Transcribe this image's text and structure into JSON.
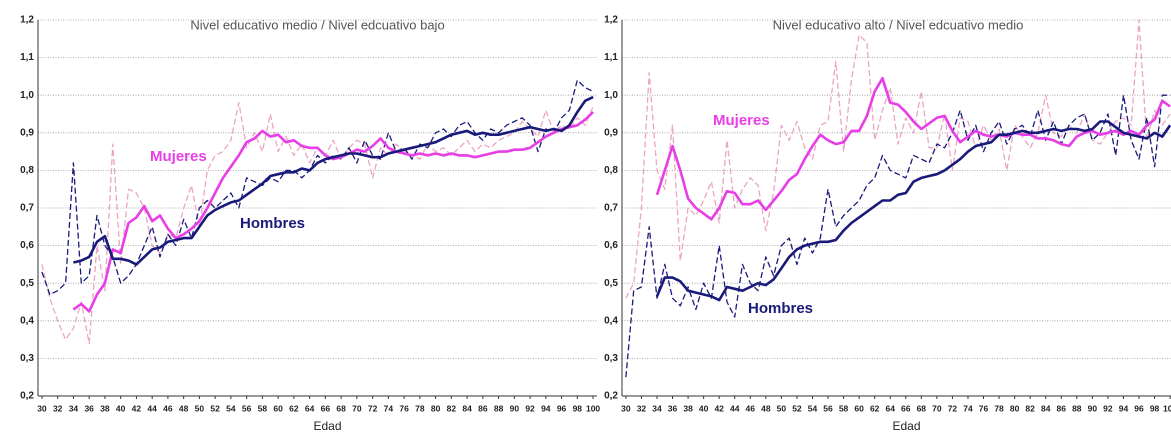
{
  "chart_data": [
    {
      "type": "line",
      "title": "Nivel educativo medio /  Nivel edcuativo bajo",
      "x_label": "Edad",
      "x": [
        30,
        31,
        32,
        33,
        34,
        35,
        36,
        37,
        38,
        39,
        40,
        41,
        42,
        43,
        44,
        45,
        46,
        47,
        48,
        49,
        50,
        51,
        52,
        53,
        54,
        55,
        56,
        57,
        58,
        59,
        60,
        61,
        62,
        63,
        64,
        65,
        66,
        67,
        68,
        69,
        70,
        71,
        72,
        73,
        74,
        75,
        76,
        77,
        78,
        79,
        80,
        81,
        82,
        83,
        84,
        85,
        86,
        87,
        88,
        89,
        90,
        91,
        92,
        93,
        94,
        95,
        96,
        97,
        98,
        99,
        100
      ],
      "xlim": [
        29.5,
        100.5
      ],
      "xticks": [
        30,
        32,
        34,
        36,
        38,
        40,
        42,
        44,
        46,
        48,
        50,
        52,
        54,
        56,
        58,
        60,
        62,
        64,
        66,
        68,
        70,
        72,
        74,
        76,
        78,
        80,
        82,
        84,
        86,
        88,
        90,
        92,
        94,
        96,
        98,
        100
      ],
      "ylim": [
        0.2,
        1.2
      ],
      "yticks": [
        {
          "value": 0.2,
          "label": "0,2"
        },
        {
          "value": 0.3,
          "label": "0,3"
        },
        {
          "value": 0.4,
          "label": "0,4"
        },
        {
          "value": 0.5,
          "label": "0,5"
        },
        {
          "value": 0.6,
          "label": "0,6"
        },
        {
          "value": 0.7,
          "label": "0,7"
        },
        {
          "value": 0.8,
          "label": "0,8"
        },
        {
          "value": 0.9,
          "label": "0,9"
        },
        {
          "value": 1.0,
          "label": "1,0"
        },
        {
          "value": 1.1,
          "label": "1,1"
        },
        {
          "value": 1.2,
          "label": "1,2"
        }
      ],
      "grid": true,
      "annotations": [
        {
          "text": "Mujeres",
          "color": "#e83ee8"
        },
        {
          "text": "Hombres",
          "color": "#1a1a7a"
        }
      ],
      "series": [
        {
          "color": "#eaa6c0",
          "dash": true,
          "values": [
            0.55,
            0.46,
            0.4,
            0.35,
            0.38,
            0.45,
            0.34,
            0.6,
            0.48,
            0.87,
            0.55,
            0.75,
            0.74,
            0.7,
            0.6,
            0.58,
            0.63,
            0.62,
            0.7,
            0.76,
            0.65,
            0.8,
            0.84,
            0.85,
            0.88,
            0.98,
            0.86,
            0.9,
            0.85,
            0.95,
            0.85,
            0.89,
            0.84,
            0.87,
            0.82,
            0.86,
            0.84,
            0.88,
            0.83,
            0.86,
            0.88,
            0.87,
            0.78,
            0.86,
            0.84,
            0.87,
            0.85,
            0.84,
            0.83,
            0.87,
            0.85,
            0.86,
            0.84,
            0.86,
            0.88,
            0.85,
            0.87,
            0.86,
            0.88,
            0.89,
            0.9,
            0.93,
            0.91,
            0.89,
            0.96,
            0.9,
            0.92,
            0.91,
            0.94,
            0.92,
            0.97
          ]
        },
        {
          "color": "#1a1a7a",
          "dash": true,
          "values": [
            0.53,
            0.47,
            0.48,
            0.5,
            0.82,
            0.5,
            0.52,
            0.68,
            0.6,
            0.57,
            0.5,
            0.52,
            0.55,
            0.6,
            0.65,
            0.57,
            0.63,
            0.6,
            0.67,
            0.62,
            0.7,
            0.72,
            0.7,
            0.72,
            0.74,
            0.7,
            0.78,
            0.77,
            0.76,
            0.78,
            0.77,
            0.8,
            0.8,
            0.78,
            0.8,
            0.84,
            0.82,
            0.84,
            0.83,
            0.86,
            0.82,
            0.88,
            0.84,
            0.83,
            0.9,
            0.85,
            0.86,
            0.83,
            0.87,
            0.86,
            0.9,
            0.91,
            0.89,
            0.92,
            0.93,
            0.9,
            0.88,
            0.91,
            0.9,
            0.92,
            0.93,
            0.94,
            0.92,
            0.85,
            0.91,
            0.9,
            0.94,
            0.96,
            1.04,
            1.02,
            1.01
          ]
        },
        {
          "color": "#e83ee8",
          "dash": false,
          "values": [
            null,
            null,
            null,
            null,
            0.43,
            0.445,
            0.425,
            0.47,
            0.5,
            0.59,
            0.58,
            0.66,
            0.675,
            0.705,
            0.665,
            0.68,
            0.645,
            0.62,
            0.63,
            0.645,
            0.665,
            0.7,
            0.74,
            0.78,
            0.81,
            0.84,
            0.875,
            0.885,
            0.905,
            0.89,
            0.895,
            0.875,
            0.88,
            0.865,
            0.86,
            0.86,
            0.84,
            0.83,
            0.835,
            0.845,
            0.855,
            0.85,
            0.865,
            0.885,
            0.86,
            0.85,
            0.845,
            0.84,
            0.845,
            0.84,
            0.845,
            0.84,
            0.845,
            0.84,
            0.84,
            0.835,
            0.84,
            0.845,
            0.85,
            0.85,
            0.855,
            0.855,
            0.86,
            0.875,
            0.89,
            0.9,
            0.91,
            0.915,
            0.92,
            0.935,
            0.955
          ]
        },
        {
          "color": "#1a1a7a",
          "dash": false,
          "values": [
            null,
            null,
            null,
            null,
            0.555,
            0.56,
            0.57,
            0.61,
            0.625,
            0.565,
            0.565,
            0.56,
            0.55,
            0.57,
            0.59,
            0.595,
            0.61,
            0.615,
            0.62,
            0.62,
            0.65,
            0.68,
            0.695,
            0.705,
            0.715,
            0.72,
            0.735,
            0.75,
            0.765,
            0.785,
            0.79,
            0.795,
            0.795,
            0.805,
            0.8,
            0.82,
            0.83,
            0.835,
            0.84,
            0.845,
            0.845,
            0.84,
            0.835,
            0.835,
            0.845,
            0.85,
            0.855,
            0.86,
            0.865,
            0.87,
            0.875,
            0.885,
            0.895,
            0.9,
            0.905,
            0.895,
            0.9,
            0.895,
            0.895,
            0.9,
            0.905,
            0.91,
            0.915,
            0.91,
            0.905,
            0.91,
            0.905,
            0.92,
            0.955,
            0.985,
            0.995
          ]
        }
      ]
    },
    {
      "type": "line",
      "title": "Nivel educativo alto /  Nivel edcuativo medio",
      "x_label": "Edad",
      "x": [
        30,
        31,
        32,
        33,
        34,
        35,
        36,
        37,
        38,
        39,
        40,
        41,
        42,
        43,
        44,
        45,
        46,
        47,
        48,
        49,
        50,
        51,
        52,
        53,
        54,
        55,
        56,
        57,
        58,
        59,
        60,
        61,
        62,
        63,
        64,
        65,
        66,
        67,
        68,
        69,
        70,
        71,
        72,
        73,
        74,
        75,
        76,
        77,
        78,
        79,
        80,
        81,
        82,
        83,
        84,
        85,
        86,
        87,
        88,
        89,
        90,
        91,
        92,
        93,
        94,
        95,
        96,
        97,
        98,
        99,
        100
      ],
      "xlim": [
        29.5,
        100.5
      ],
      "xticks": [
        30,
        32,
        34,
        36,
        38,
        40,
        42,
        44,
        46,
        48,
        50,
        52,
        54,
        56,
        58,
        60,
        62,
        64,
        66,
        68,
        70,
        72,
        74,
        76,
        78,
        80,
        82,
        84,
        86,
        88,
        90,
        92,
        94,
        96,
        98,
        100
      ],
      "ylim": [
        0.2,
        1.2
      ],
      "yticks": [
        {
          "value": 0.2,
          "label": "0,2"
        },
        {
          "value": 0.3,
          "label": "0,3"
        },
        {
          "value": 0.4,
          "label": "0,4"
        },
        {
          "value": 0.5,
          "label": "0,5"
        },
        {
          "value": 0.6,
          "label": "0,6"
        },
        {
          "value": 0.7,
          "label": "0,7"
        },
        {
          "value": 0.8,
          "label": "0,8"
        },
        {
          "value": 0.9,
          "label": "0,9"
        },
        {
          "value": 1.0,
          "label": "1,0"
        },
        {
          "value": 1.1,
          "label": "1,1"
        },
        {
          "value": 1.2,
          "label": "1,2"
        }
      ],
      "grid": true,
      "annotations": [
        {
          "text": "Mujeres",
          "color": "#e83ee8"
        },
        {
          "text": "Hombres",
          "color": "#1a1a7a"
        }
      ],
      "series": [
        {
          "color": "#eaa6c0",
          "dash": true,
          "values": [
            0.46,
            0.5,
            0.7,
            1.06,
            0.8,
            0.75,
            0.92,
            0.56,
            0.7,
            0.68,
            0.72,
            0.77,
            0.66,
            0.88,
            0.7,
            0.75,
            0.78,
            0.76,
            0.64,
            0.74,
            0.92,
            0.88,
            0.93,
            0.86,
            0.83,
            0.92,
            0.93,
            1.09,
            0.85,
            1.04,
            1.16,
            1.14,
            0.88,
            0.96,
            1.02,
            0.87,
            0.94,
            0.9,
            1.01,
            0.86,
            0.86,
            0.95,
            0.8,
            0.94,
            0.93,
            0.86,
            0.92,
            0.88,
            0.91,
            0.8,
            0.92,
            0.89,
            0.86,
            0.9,
            1.0,
            0.9,
            0.89,
            0.92,
            0.9,
            0.95,
            0.88,
            0.87,
            0.9,
            0.93,
            0.94,
            0.92,
            1.2,
            0.88,
            0.96,
            0.92,
            0.95
          ]
        },
        {
          "color": "#1a1a7a",
          "dash": true,
          "values": [
            0.25,
            0.48,
            0.49,
            0.65,
            0.46,
            0.55,
            0.46,
            0.44,
            0.49,
            0.43,
            0.5,
            0.46,
            0.6,
            0.45,
            0.41,
            0.55,
            0.5,
            0.48,
            0.57,
            0.52,
            0.6,
            0.62,
            0.55,
            0.62,
            0.58,
            0.62,
            0.75,
            0.65,
            0.68,
            0.7,
            0.72,
            0.76,
            0.78,
            0.84,
            0.8,
            0.79,
            0.78,
            0.84,
            0.83,
            0.82,
            0.87,
            0.86,
            0.9,
            0.96,
            0.88,
            0.92,
            0.85,
            0.9,
            0.93,
            0.87,
            0.91,
            0.92,
            0.89,
            0.96,
            0.88,
            0.93,
            0.87,
            0.92,
            0.94,
            0.95,
            0.88,
            0.9,
            0.95,
            0.84,
            1.0,
            0.88,
            0.83,
            0.94,
            0.81,
            1.0,
            1.0
          ]
        },
        {
          "color": "#e83ee8",
          "dash": false,
          "values": [
            null,
            null,
            null,
            null,
            0.735,
            0.8,
            0.865,
            0.8,
            0.725,
            0.7,
            0.685,
            0.67,
            0.7,
            0.745,
            0.74,
            0.71,
            0.71,
            0.72,
            0.695,
            0.72,
            0.745,
            0.775,
            0.79,
            0.83,
            0.865,
            0.895,
            0.88,
            0.87,
            0.875,
            0.905,
            0.905,
            0.945,
            1.01,
            1.045,
            0.98,
            0.975,
            0.955,
            0.93,
            0.91,
            0.925,
            0.94,
            0.945,
            0.905,
            0.875,
            0.89,
            0.905,
            0.895,
            0.89,
            0.895,
            0.89,
            0.9,
            0.895,
            0.895,
            0.885,
            0.885,
            0.88,
            0.87,
            0.865,
            0.89,
            0.9,
            0.905,
            0.895,
            0.9,
            0.905,
            0.895,
            0.905,
            0.895,
            0.92,
            0.935,
            0.985,
            0.97
          ]
        },
        {
          "color": "#1a1a7a",
          "dash": false,
          "values": [
            null,
            null,
            null,
            null,
            0.465,
            0.515,
            0.515,
            0.505,
            0.48,
            0.475,
            0.47,
            0.465,
            0.455,
            0.49,
            0.485,
            0.48,
            0.49,
            0.5,
            0.495,
            0.51,
            0.54,
            0.57,
            0.59,
            0.6,
            0.605,
            0.61,
            0.61,
            0.615,
            0.64,
            0.66,
            0.675,
            0.69,
            0.705,
            0.72,
            0.72,
            0.735,
            0.74,
            0.77,
            0.78,
            0.785,
            0.79,
            0.8,
            0.815,
            0.83,
            0.85,
            0.865,
            0.87,
            0.875,
            0.895,
            0.895,
            0.9,
            0.905,
            0.9,
            0.9,
            0.905,
            0.91,
            0.905,
            0.91,
            0.91,
            0.905,
            0.91,
            0.93,
            0.93,
            0.915,
            0.9,
            0.895,
            0.89,
            0.885,
            0.9,
            0.89,
            0.92
          ]
        }
      ]
    }
  ]
}
